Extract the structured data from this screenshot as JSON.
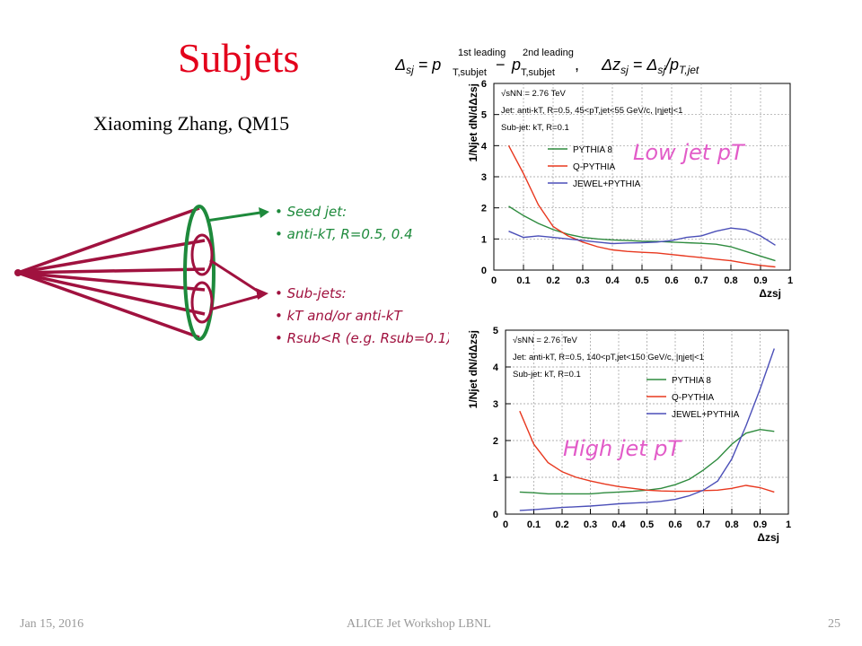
{
  "slide": {
    "title": "Subjets",
    "author": "Xiaoming Zhang, QM15",
    "footer_date": "Jan 15, 2016",
    "footer_event": "ALICE Jet Workshop LBNL",
    "page_number": "25"
  },
  "formula": {
    "delta_sj": "Δsj = pT,subjet(1st leading) − pT,subjet(2nd leading)",
    "delta_zsj": "Δzsj = Δsj/pT,jet"
  },
  "diagram": {
    "seed_jet_header": "Seed jet:",
    "seed_jet_item": "anti-kT, R=0.5, 0.4",
    "subjets_header": "Sub-jets:",
    "subjets_item1": "kT and/or anti-kT",
    "subjets_item2": "Rsub<R (e.g. Rsub=0.1)"
  },
  "colors": {
    "title": "#e3001b",
    "cone_purple": "#a0123f",
    "cone_green": "#1e8a3c",
    "pythia8": "#2e8b3e",
    "qpythia": "#e8381f",
    "jewel": "#4b4fb8",
    "annotation_pink": "#e25cc8"
  },
  "chart_data": [
    {
      "type": "line",
      "annotation": "Low jet pT",
      "info_lines": [
        "√sNN = 2.76 TeV",
        "Jet: anti-kT, R=0.5, 45<pT,jet<55 GeV/c, |ηjet|<1",
        "Sub-jet: kT, R=0.1"
      ],
      "ylabel": "1/Njet dN/dΔzsj",
      "xlabel": "Δzsj",
      "xlim": [
        0,
        1
      ],
      "ylim": [
        0,
        6
      ],
      "xticks": [
        "0",
        "0.1",
        "0.2",
        "0.3",
        "0.4",
        "0.5",
        "0.6",
        "0.7",
        "0.8",
        "0.9",
        "1"
      ],
      "yticks": [
        "0",
        "1",
        "2",
        "3",
        "4",
        "5",
        "6"
      ],
      "grid": true,
      "x": [
        0.05,
        0.1,
        0.15,
        0.2,
        0.25,
        0.3,
        0.35,
        0.4,
        0.45,
        0.5,
        0.55,
        0.6,
        0.65,
        0.7,
        0.75,
        0.8,
        0.85,
        0.9,
        0.95
      ],
      "series": [
        {
          "name": "PYTHIA 8",
          "color": "#2e8b3e",
          "values": [
            2.05,
            1.75,
            1.5,
            1.3,
            1.15,
            1.05,
            1.0,
            0.97,
            0.95,
            0.93,
            0.92,
            0.9,
            0.88,
            0.86,
            0.83,
            0.75,
            0.6,
            0.45,
            0.3
          ]
        },
        {
          "name": "Q-PYTHIA",
          "color": "#e8381f",
          "values": [
            4.0,
            3.1,
            2.1,
            1.4,
            1.1,
            0.9,
            0.75,
            0.65,
            0.6,
            0.57,
            0.55,
            0.5,
            0.45,
            0.4,
            0.35,
            0.3,
            0.22,
            0.15,
            0.1
          ]
        },
        {
          "name": "JEWEL+PYTHIA",
          "color": "#4b4fb8",
          "values": [
            1.25,
            1.05,
            1.1,
            1.05,
            1.0,
            0.95,
            0.9,
            0.85,
            0.87,
            0.88,
            0.9,
            0.95,
            1.05,
            1.1,
            1.25,
            1.35,
            1.3,
            1.1,
            0.8
          ]
        }
      ]
    },
    {
      "type": "line",
      "annotation": "High jet pT",
      "info_lines": [
        "√sNN = 2.76 TeV",
        "Jet: anti-kT, R=0.5, 140<pT,jet<150 GeV/c, |ηjet|<1",
        "Sub-jet: kT, R=0.1"
      ],
      "ylabel": "1/Njet dN/dΔzsj",
      "xlabel": "Δzsj",
      "xlim": [
        0,
        1
      ],
      "ylim": [
        0,
        5
      ],
      "xticks": [
        "0",
        "0.1",
        "0.2",
        "0.3",
        "0.4",
        "0.5",
        "0.6",
        "0.7",
        "0.8",
        "0.9",
        "1"
      ],
      "yticks": [
        "0",
        "1",
        "2",
        "3",
        "4",
        "5"
      ],
      "grid": true,
      "x": [
        0.05,
        0.1,
        0.15,
        0.2,
        0.25,
        0.3,
        0.35,
        0.4,
        0.45,
        0.5,
        0.55,
        0.6,
        0.65,
        0.7,
        0.75,
        0.8,
        0.85,
        0.9,
        0.95
      ],
      "series": [
        {
          "name": "PYTHIA 8",
          "color": "#2e8b3e",
          "values": [
            0.6,
            0.58,
            0.55,
            0.55,
            0.55,
            0.55,
            0.58,
            0.6,
            0.62,
            0.65,
            0.7,
            0.8,
            0.95,
            1.2,
            1.5,
            1.9,
            2.2,
            2.3,
            2.25
          ]
        },
        {
          "name": "Q-PYTHIA",
          "color": "#e8381f",
          "values": [
            2.8,
            1.9,
            1.4,
            1.15,
            1.0,
            0.9,
            0.82,
            0.75,
            0.7,
            0.65,
            0.63,
            0.62,
            0.62,
            0.64,
            0.65,
            0.7,
            0.78,
            0.72,
            0.6
          ]
        },
        {
          "name": "JEWEL+PYTHIA",
          "color": "#4b4fb8",
          "values": [
            0.1,
            0.12,
            0.15,
            0.18,
            0.2,
            0.22,
            0.25,
            0.28,
            0.3,
            0.32,
            0.35,
            0.4,
            0.5,
            0.65,
            0.9,
            1.5,
            2.4,
            3.4,
            4.5
          ]
        }
      ]
    }
  ]
}
